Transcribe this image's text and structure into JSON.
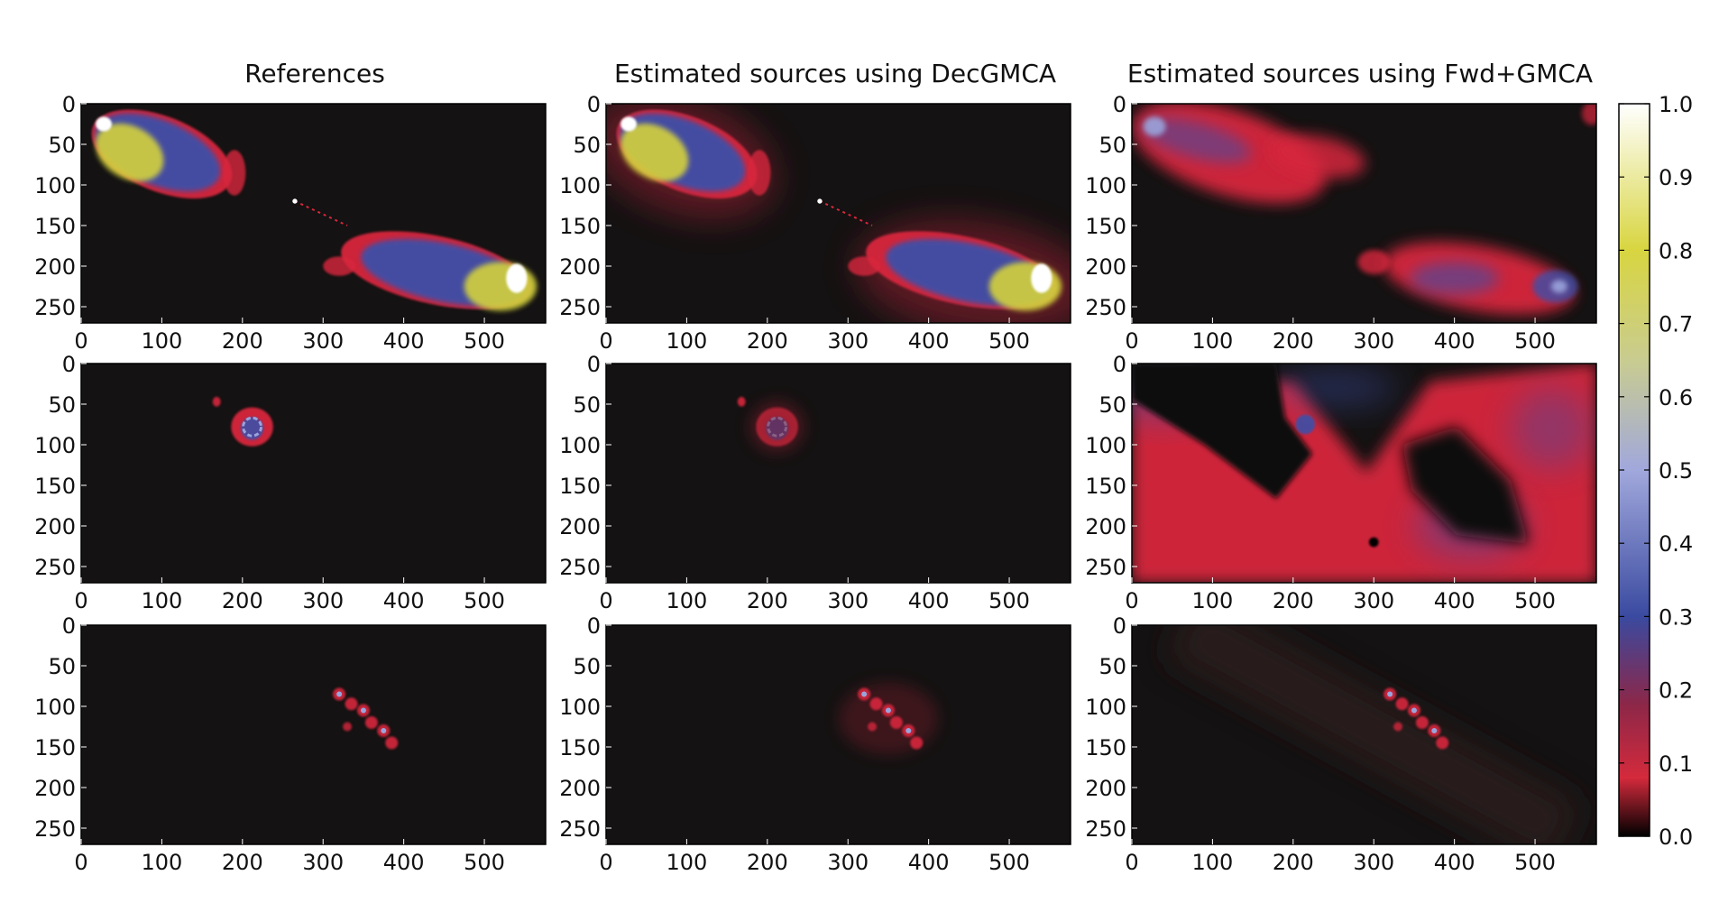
{
  "chart_data": {
    "type": "heatmap",
    "grid_rows": 3,
    "grid_cols": 3,
    "column_titles": [
      "References",
      "Estimated sources using DecGMCA",
      "Estimated sources using Fwd+GMCA"
    ],
    "x_ticks": [
      "0",
      "100",
      "200",
      "300",
      "400",
      "500"
    ],
    "y_ticks": [
      "0",
      "50",
      "100",
      "150",
      "200",
      "250"
    ],
    "x_range": [
      0,
      576
    ],
    "y_range": [
      270,
      0
    ],
    "colorbar": {
      "ticks": [
        "0.0",
        "0.1",
        "0.2",
        "0.3",
        "0.4",
        "0.5",
        "0.6",
        "0.7",
        "0.8",
        "0.9",
        "1.0"
      ],
      "range": [
        0.0,
        1.0
      ],
      "colors": [
        {
          "value": 0.0,
          "color": "#000000"
        },
        {
          "value": 0.08,
          "color": "#d42a3c"
        },
        {
          "value": 0.18,
          "color": "#8c2748"
        },
        {
          "value": 0.3,
          "color": "#3a4aa0"
        },
        {
          "value": 0.5,
          "color": "#a1a8dc"
        },
        {
          "value": 0.65,
          "color": "#c9cc90"
        },
        {
          "value": 0.8,
          "color": "#d8d540"
        },
        {
          "value": 1.0,
          "color": "#ffffff"
        }
      ]
    },
    "panels": [
      {
        "row": 0,
        "col": 0,
        "source": "radio galaxy (two lobes)"
      },
      {
        "row": 0,
        "col": 1,
        "source": "radio galaxy (two lobes)"
      },
      {
        "row": 0,
        "col": 2,
        "source": "radio galaxy (two lobes)"
      },
      {
        "row": 1,
        "col": 0,
        "source": "ring source"
      },
      {
        "row": 1,
        "col": 1,
        "source": "ring source"
      },
      {
        "row": 1,
        "col": 2,
        "source": "ring source"
      },
      {
        "row": 2,
        "col": 0,
        "source": "compact knots"
      },
      {
        "row": 2,
        "col": 1,
        "source": "compact knots"
      },
      {
        "row": 2,
        "col": 2,
        "source": "compact knots"
      }
    ]
  }
}
